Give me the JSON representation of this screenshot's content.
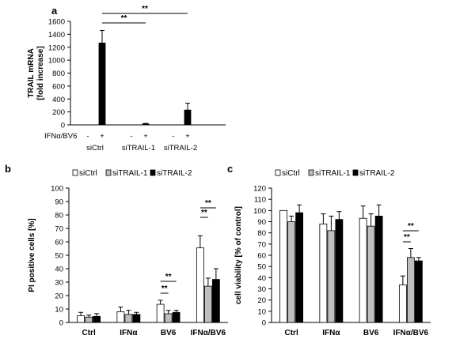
{
  "colors": {
    "siCtrl": "#ffffff",
    "siTRAIL-1": "#bfbfbf",
    "siTRAIL-2": "#000000",
    "stroke": "#000000"
  },
  "chart_data": [
    {
      "panel": "a",
      "type": "bar",
      "ylabel": "TRAIL mRNA [fold increase]",
      "ylabel_lines": [
        "TRAIL mRNA",
        "[fold increase]"
      ],
      "ylim": [
        0,
        1600
      ],
      "yticks": [
        0,
        200,
        400,
        600,
        800,
        1000,
        1200,
        1400,
        1600
      ],
      "treatment_label": "IFNα/BV6",
      "groups": [
        "siCtrl",
        "siTRAIL-1",
        "siTRAIL-2"
      ],
      "conditions": [
        "-",
        "+"
      ],
      "values": [
        [
          1,
          1265
        ],
        [
          1,
          15
        ],
        [
          1,
          230
        ]
      ],
      "errors": [
        [
          0,
          195
        ],
        [
          0,
          8
        ],
        [
          0,
          105
        ]
      ],
      "significance": [
        {
          "label": "**",
          "from": "siCtrl +",
          "to": "siTRAIL-1 +"
        },
        {
          "label": "**",
          "from": "siCtrl +",
          "to": "siTRAIL-2 +"
        }
      ]
    },
    {
      "panel": "b",
      "type": "bar",
      "ylabel": "PI positive cells [%]",
      "ylim": [
        0,
        100
      ],
      "yticks": [
        0,
        10,
        20,
        30,
        40,
        50,
        60,
        70,
        80,
        90,
        100
      ],
      "categories": [
        "Ctrl",
        "IFNα",
        "BV6",
        "IFNα/BV6"
      ],
      "legend": [
        "siCtrl",
        "siTRAIL-1",
        "siTRAIL-2"
      ],
      "series": [
        {
          "name": "siCtrl",
          "values": [
            5,
            8,
            13.5,
            55.5
          ],
          "errors": [
            2.5,
            3.5,
            3,
            9
          ]
        },
        {
          "name": "siTRAIL-1",
          "values": [
            4,
            6,
            6.5,
            27
          ],
          "errors": [
            1.5,
            3,
            2.5,
            6
          ]
        },
        {
          "name": "siTRAIL-2",
          "values": [
            4.5,
            6,
            7.5,
            32
          ],
          "errors": [
            2,
            1.5,
            1.5,
            8
          ]
        }
      ],
      "significance": [
        {
          "label": "**",
          "category": "BV6",
          "pair": [
            "siCtrl",
            "siTRAIL-1"
          ]
        },
        {
          "label": "**",
          "category": "BV6",
          "pair": [
            "siCtrl",
            "siTRAIL-2"
          ]
        },
        {
          "label": "**",
          "category": "IFNα/BV6",
          "pair": [
            "siCtrl",
            "siTRAIL-1"
          ]
        },
        {
          "label": "**",
          "category": "IFNα/BV6",
          "pair": [
            "siCtrl",
            "siTRAIL-2"
          ]
        }
      ]
    },
    {
      "panel": "c",
      "type": "bar",
      "ylabel": "cell viability [% of control]",
      "ylim": [
        0,
        120
      ],
      "yticks": [
        0,
        10,
        20,
        30,
        40,
        50,
        60,
        70,
        80,
        90,
        100,
        110,
        120
      ],
      "categories": [
        "Ctrl",
        "IFNα",
        "BV6",
        "IFNα/BV6"
      ],
      "legend": [
        "siCtrl",
        "siTRAIL-1",
        "siTRAIL-2"
      ],
      "series": [
        {
          "name": "siCtrl",
          "values": [
            100,
            88,
            93,
            33.5
          ],
          "errors": [
            0,
            9,
            11,
            8
          ]
        },
        {
          "name": "siTRAIL-1",
          "values": [
            90,
            82,
            86,
            58
          ],
          "errors": [
            5,
            13,
            11,
            8
          ]
        },
        {
          "name": "siTRAIL-2",
          "values": [
            98,
            92,
            95,
            55
          ],
          "errors": [
            7,
            7,
            10,
            3
          ]
        }
      ],
      "significance": [
        {
          "label": "**",
          "category": "IFNα/BV6",
          "pair": [
            "siCtrl",
            "siTRAIL-1"
          ]
        },
        {
          "label": "**",
          "category": "IFNα/BV6",
          "pair": [
            "siCtrl",
            "siTRAIL-2"
          ]
        }
      ]
    }
  ]
}
